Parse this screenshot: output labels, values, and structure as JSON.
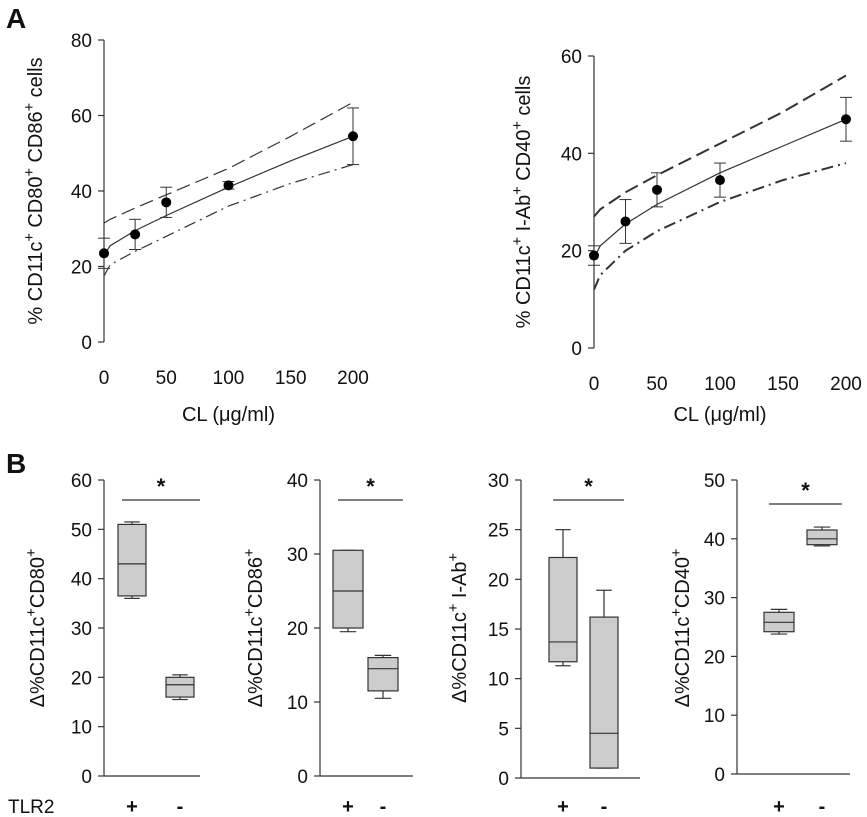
{
  "panels": {
    "a": "A",
    "b": "B"
  },
  "colors": {
    "box_fill": "#cccccc",
    "stroke": "#333333",
    "point": "#000000"
  },
  "row_label": "TLR2",
  "chart_data": [
    {
      "type": "scatter",
      "ylabel": "% CD11c+ CD80+ CD86+ cells",
      "xlabel": "CL (μg/ml)",
      "xlim": [
        0,
        200
      ],
      "ylim": [
        0,
        80
      ],
      "xticks": [
        0,
        50,
        100,
        150,
        200
      ],
      "yticks": [
        0,
        20,
        40,
        60,
        80
      ],
      "grid": false,
      "points": [
        {
          "x": 0,
          "y": 23.5,
          "err": 4
        },
        {
          "x": 25,
          "y": 28.5,
          "err": 4
        },
        {
          "x": 50,
          "y": 37,
          "err": 4
        },
        {
          "x": 100,
          "y": 41.5,
          "err": 1
        },
        {
          "x": 200,
          "y": 54.5,
          "err": 7.5
        }
      ],
      "fit": {
        "x": [
          0,
          5,
          25,
          50,
          100,
          150,
          200
        ],
        "y": [
          23,
          25.5,
          29.5,
          33.5,
          41,
          48,
          54.5
        ]
      },
      "band_upper": {
        "x": [
          0,
          5,
          25,
          50,
          100,
          150,
          200
        ],
        "y": [
          31.5,
          32.5,
          35.5,
          39,
          46,
          54.5,
          63.5
        ]
      },
      "band_lower": {
        "x": [
          0,
          5,
          25,
          50,
          100,
          150,
          200
        ],
        "y": [
          17.5,
          20.5,
          24,
          28,
          36,
          42,
          47
        ]
      }
    },
    {
      "type": "scatter",
      "ylabel": "% CD11c+ I-Ab+ CD40+ cells",
      "xlabel": "CL (μg/ml)",
      "xlim": [
        0,
        200
      ],
      "ylim": [
        0,
        60
      ],
      "xticks": [
        0,
        50,
        100,
        150,
        200
      ],
      "yticks": [
        0,
        20,
        40,
        60
      ],
      "grid": false,
      "points": [
        {
          "x": 0,
          "y": 19,
          "err": 2
        },
        {
          "x": 25,
          "y": 26,
          "err": 4.5
        },
        {
          "x": 50,
          "y": 32.5,
          "err": 3.5
        },
        {
          "x": 100,
          "y": 34.5,
          "err": 3.5
        },
        {
          "x": 200,
          "y": 47,
          "err": 4.5
        }
      ],
      "fit": {
        "x": [
          0,
          5,
          25,
          50,
          100,
          150,
          200
        ],
        "y": [
          18.5,
          21,
          25.5,
          29.5,
          36,
          41.5,
          47
        ]
      },
      "band_upper": {
        "x": [
          0,
          5,
          25,
          50,
          100,
          150,
          200
        ],
        "y": [
          27,
          28.5,
          32,
          35.5,
          42,
          48.5,
          56
        ]
      },
      "band_lower": {
        "x": [
          0,
          5,
          25,
          50,
          100,
          150,
          200
        ],
        "y": [
          12,
          15,
          20,
          24,
          30,
          34.5,
          38
        ]
      }
    },
    {
      "type": "box",
      "ylabel": "Δ%CD11c+CD80+",
      "ylim": [
        0,
        60
      ],
      "yticks": [
        0,
        10,
        20,
        30,
        40,
        50,
        60
      ],
      "categories": [
        "+",
        "-"
      ],
      "boxes": [
        {
          "min": 36,
          "q1": 36.5,
          "median": 43,
          "q3": 51,
          "max": 51.5
        },
        {
          "min": 15.5,
          "q1": 16,
          "median": 18.5,
          "q3": 20,
          "max": 20.5
        }
      ],
      "significance": "*"
    },
    {
      "type": "box",
      "ylabel": "Δ%CD11c+CD86+",
      "ylim": [
        0,
        40
      ],
      "yticks": [
        0,
        10,
        20,
        30,
        40
      ],
      "categories": [
        "+",
        "-"
      ],
      "boxes": [
        {
          "min": 19.5,
          "q1": 20,
          "median": 25,
          "q3": 30.5,
          "max": 30.5
        },
        {
          "min": 10.5,
          "q1": 11.5,
          "median": 14.5,
          "q3": 16,
          "max": 16.3
        }
      ],
      "significance": "*"
    },
    {
      "type": "box",
      "ylabel": "Δ%CD11c+ I-Ab+",
      "ylim": [
        0,
        30
      ],
      "yticks": [
        0,
        5,
        10,
        15,
        20,
        25,
        30
      ],
      "categories": [
        "+",
        "-"
      ],
      "boxes": [
        {
          "min": 11.3,
          "q1": 11.7,
          "median": 13.7,
          "q3": 22.2,
          "max": 25
        },
        {
          "min": 1,
          "q1": 1,
          "median": 4.5,
          "q3": 16.2,
          "max": 18.9
        }
      ],
      "significance": "*"
    },
    {
      "type": "box",
      "ylabel": "Δ%CD11c+CD40+",
      "ylim": [
        0,
        50
      ],
      "yticks": [
        0,
        10,
        20,
        30,
        40,
        50
      ],
      "categories": [
        "+",
        "-"
      ],
      "boxes": [
        {
          "min": 23.8,
          "q1": 24.2,
          "median": 25.8,
          "q3": 27.5,
          "max": 28
        },
        {
          "min": 38.8,
          "q1": 39,
          "median": 40,
          "q3": 41.5,
          "max": 42
        }
      ],
      "significance": "*"
    }
  ]
}
